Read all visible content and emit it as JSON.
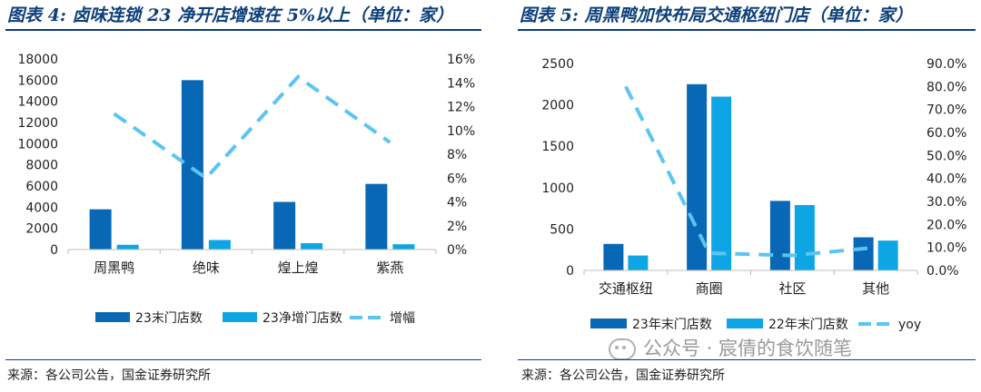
{
  "colors": {
    "dark": "#0868b5",
    "light": "#0ea5e4",
    "line": "#5bc5f2",
    "title": "#0d3f7a"
  },
  "watermark": "公众号 · 宸倩的食饮随笔",
  "chart_data": [
    {
      "type": "bar",
      "title": "图表 4: 卤味连锁 23 净开店增速在 5%以上（单位：家）",
      "categories": [
        "周黑鸭",
        "绝味",
        "煌上煌",
        "紫燕"
      ],
      "series": [
        {
          "name": "23末门店数",
          "kind": "bar",
          "axis": "left",
          "values": [
            3800,
            16000,
            4500,
            6200
          ]
        },
        {
          "name": "23净增门店数",
          "kind": "bar",
          "axis": "left",
          "values": [
            450,
            900,
            600,
            500
          ]
        },
        {
          "name": "增幅",
          "kind": "line",
          "axis": "right",
          "values": [
            0.114,
            0.06,
            0.145,
            0.09
          ]
        }
      ],
      "y_left": {
        "min": 0,
        "max": 18000,
        "step": 2000,
        "ticks": [
          "0",
          "2000",
          "4000",
          "6000",
          "8000",
          "10000",
          "12000",
          "14000",
          "16000",
          "18000"
        ]
      },
      "y_right": {
        "min": 0,
        "max": 0.16,
        "step": 0.02,
        "ticks": [
          "0%",
          "2%",
          "4%",
          "6%",
          "8%",
          "10%",
          "12%",
          "14%",
          "16%"
        ]
      },
      "legend": [
        "23末门店数",
        "23净增门店数",
        "增幅"
      ],
      "source": "来源：各公司公告，国金证券研究所"
    },
    {
      "type": "bar",
      "title": "图表 5: 周黑鸭加快布局交通枢纽门店（单位：家）",
      "categories": [
        "交通枢纽",
        "商圈",
        "社区",
        "其他"
      ],
      "series": [
        {
          "name": "23年末门店数",
          "kind": "bar",
          "axis": "left",
          "values": [
            320,
            2250,
            840,
            400
          ]
        },
        {
          "name": "22年末门店数",
          "kind": "bar",
          "axis": "left",
          "values": [
            180,
            2100,
            790,
            360
          ]
        },
        {
          "name": "yoy",
          "kind": "line",
          "axis": "right",
          "values": [
            0.8,
            0.075,
            0.065,
            0.1
          ]
        }
      ],
      "y_left": {
        "min": 0,
        "max": 2500,
        "step": 500,
        "ticks": [
          "0",
          "500",
          "1000",
          "1500",
          "2000",
          "2500"
        ]
      },
      "y_right": {
        "min": 0,
        "max": 0.9,
        "step": 0.1,
        "ticks": [
          "0.0%",
          "10.0%",
          "20.0%",
          "30.0%",
          "40.0%",
          "50.0%",
          "60.0%",
          "70.0%",
          "80.0%",
          "90.0%"
        ]
      },
      "legend": [
        "23年末门店数",
        "22年末门店数",
        "yoy"
      ],
      "source": "来源：各公司公告，国金证券研究所"
    }
  ]
}
